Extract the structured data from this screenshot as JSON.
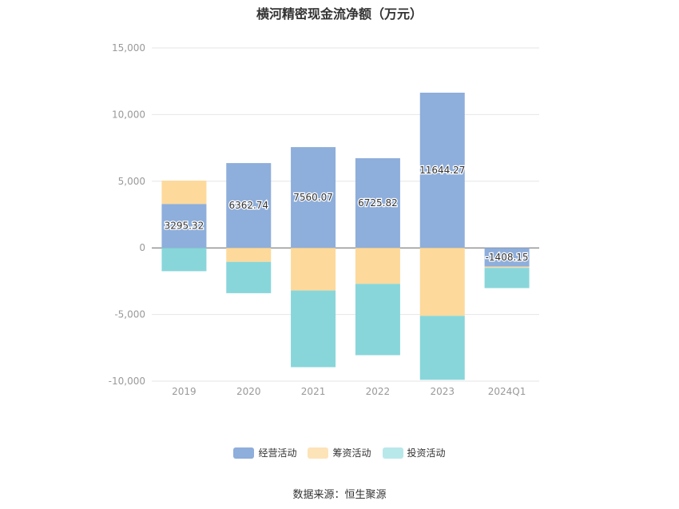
{
  "chart_data": {
    "type": "bar",
    "stacked": true,
    "title": "横河精密现金流净额（万元）",
    "categories": [
      "2019",
      "2020",
      "2021",
      "2022",
      "2023",
      "2024Q1"
    ],
    "ylim": [
      -10000,
      15000
    ],
    "yticks": [
      15000,
      10000,
      5000,
      0,
      -5000,
      -10000
    ],
    "ytick_labels": [
      "15,000",
      "10,000",
      "5,000",
      "0",
      "-5,000",
      "-10,000"
    ],
    "grid": true,
    "legend_position": "bottom",
    "series": [
      {
        "name": "经营活动",
        "color": "#8eaedb",
        "values": [
          3295.32,
          6362.74,
          7560.07,
          6725.82,
          11644.27,
          -1408.15
        ],
        "labels": [
          "3295.32",
          "6362.74",
          "7560.07",
          "6725.82",
          "11644.27",
          "-1408.15"
        ]
      },
      {
        "name": "筹资活动",
        "color": "#fdd99b",
        "values": [
          1750,
          -1050,
          -3200,
          -2700,
          -5100,
          -90
        ]
      },
      {
        "name": "投资活动",
        "color": "#88d6da",
        "values": [
          -1750,
          -2350,
          -5750,
          -5350,
          -4800,
          -1520
        ]
      }
    ]
  },
  "legend": {
    "items": [
      {
        "label": "经营活动",
        "color": "#8eaedb"
      },
      {
        "label": "筹资活动",
        "color": "#fde3b8"
      },
      {
        "label": "投资活动",
        "color": "#b9e8ea"
      }
    ]
  },
  "source_text": "数据来源：恒生聚源"
}
